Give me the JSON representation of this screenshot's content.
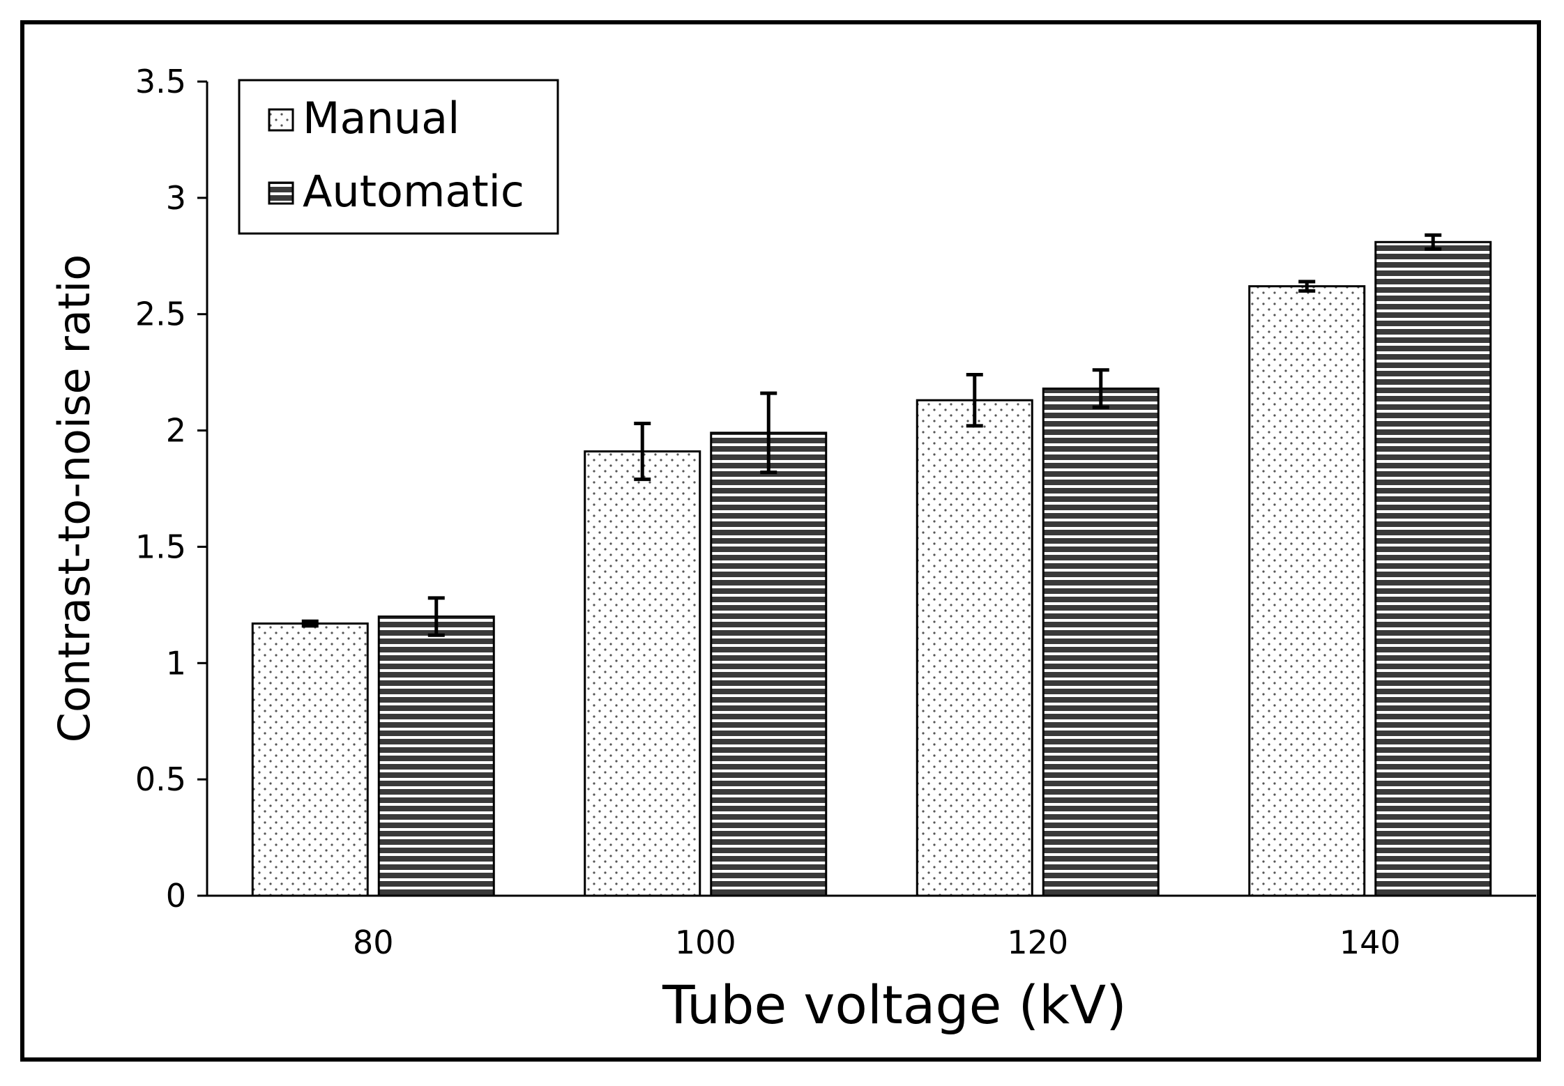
{
  "chart_data": {
    "type": "bar",
    "title": "",
    "xlabel": "Tube voltage (kV)",
    "ylabel": "Contrast-to-noise ratio",
    "categories": [
      "80",
      "100",
      "120",
      "140"
    ],
    "ylim": [
      0,
      3.5
    ],
    "yticks": [
      0,
      0.5,
      1,
      1.5,
      2,
      2.5,
      3,
      3.5
    ],
    "ytick_labels": [
      "0",
      "0.5",
      "1",
      "1.5",
      "2",
      "2.5",
      "3",
      "3.5"
    ],
    "grid": false,
    "legend_position": "top-left",
    "series": [
      {
        "name": "Manual",
        "pattern": "dotted",
        "values": [
          1.17,
          1.91,
          2.13,
          2.62
        ],
        "errors": [
          0.01,
          0.12,
          0.11,
          0.02
        ]
      },
      {
        "name": "Automatic",
        "pattern": "horizontal-stripes",
        "values": [
          1.2,
          1.99,
          2.18,
          2.81
        ],
        "errors": [
          0.08,
          0.17,
          0.08,
          0.03
        ]
      }
    ]
  },
  "colors": {
    "bar_edge": "#000000",
    "manual_fill": "#ffffff",
    "manual_dots": "#555555",
    "automatic_fill": "#3a3a3a",
    "automatic_stripes": "#ffffff"
  }
}
